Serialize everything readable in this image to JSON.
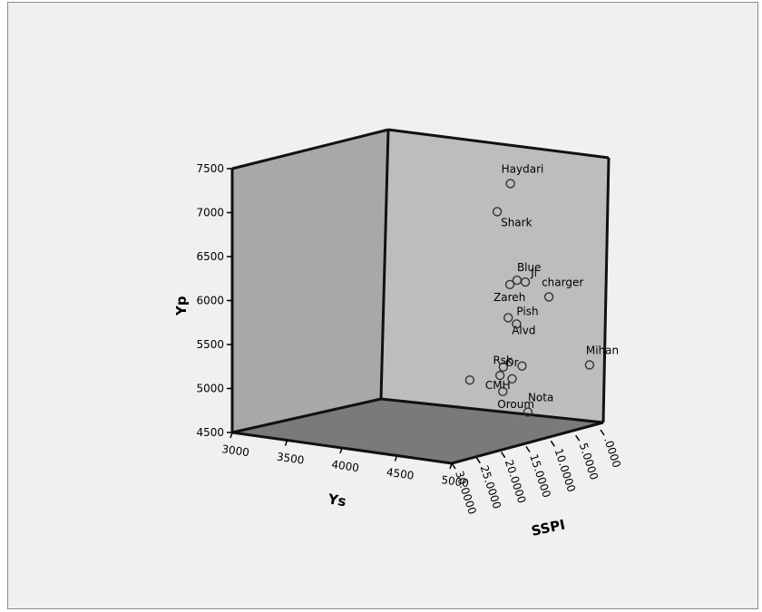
{
  "chart_data": {
    "type": "scatter",
    "dimensions": "3d",
    "title": "",
    "axes": {
      "x": {
        "label": "Ys",
        "range": [
          3000,
          5000
        ],
        "ticks": [
          "3000",
          "3500",
          "4000",
          "4500",
          "5000"
        ]
      },
      "y": {
        "label": "Yp",
        "range": [
          4500,
          7500
        ],
        "ticks": [
          "4500",
          "5000",
          "5500",
          "6000",
          "6500",
          "7000",
          "7500"
        ]
      },
      "z": {
        "label": "SSPI",
        "range": [
          0,
          30
        ],
        "ticks": [
          ".0000",
          "5.0000",
          "10.0000",
          "15.0000",
          "20.0000",
          "25.0000",
          "30.0000"
        ]
      }
    },
    "points": [
      {
        "label": "Haydari",
        "ys": 4450,
        "yp": 7280,
        "sspi": 6
      },
      {
        "label": "Shark",
        "ys": 4420,
        "yp": 6980,
        "sspi": 8
      },
      {
        "label": "Blue",
        "ys": 4420,
        "yp": 6150,
        "sspi": 4
      },
      {
        "label": "Jl",
        "ys": 4360,
        "yp": 6080,
        "sspi": 1
      },
      {
        "label": "charger",
        "ys": 4620,
        "yp": 5970,
        "sspi": 2
      },
      {
        "label": "Zareh",
        "ys": 4400,
        "yp": 6110,
        "sspi": 5
      },
      {
        "label": "Alvd",
        "ys": 4430,
        "yp": 5750,
        "sspi": 6
      },
      {
        "label": "Pish",
        "ys": 4280,
        "yp": 5590,
        "sspi": 1
      },
      {
        "label": "CMH",
        "ys": 4250,
        "yp": 5120,
        "sspi": 3
      },
      {
        "label": "Or",
        "ys": 4310,
        "yp": 5060,
        "sspi": 5
      },
      {
        "label": "Rsk",
        "ys": 4330,
        "yp": 5120,
        "sspi": 1
      },
      {
        "label": "Oroum",
        "ys": 4200,
        "yp": 4820,
        "sspi": 2
      },
      {
        "label": "Nota",
        "ys": 4700,
        "yp": 4750,
        "sspi": 8
      },
      {
        "label": "Mihan",
        "ys": 4900,
        "yp": 5220,
        "sspi": 0
      },
      {
        "label": "",
        "ys": 4080,
        "yp": 4980,
        "sspi": 6
      },
      {
        "label": "",
        "ys": 4330,
        "yp": 5000,
        "sspi": 3
      }
    ]
  }
}
